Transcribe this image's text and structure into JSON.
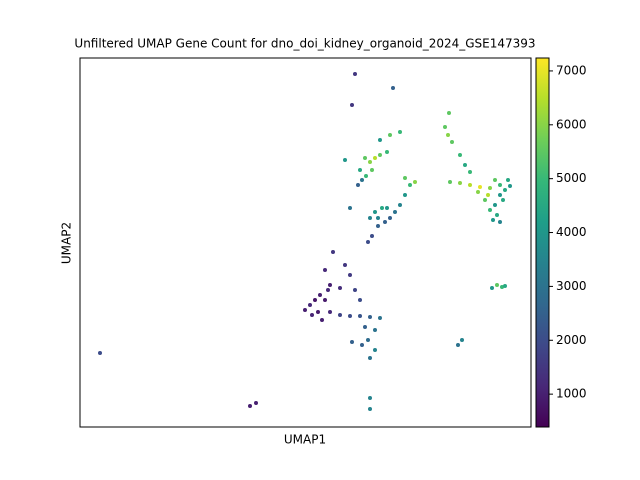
{
  "chart_data": {
    "type": "scatter",
    "title": "Unfiltered UMAP Gene Count for dno_doi_kidney_organoid_2024_GSE147393",
    "x_label": "UMAP1",
    "y_label": "UMAP2",
    "xlim": [
      0,
      45.1
    ],
    "ylim": [
      0,
      36.9
    ],
    "colormap": "viridis",
    "clim": [
      390,
      7240
    ],
    "cticks": [
      1000,
      2000,
      3000,
      4000,
      5000,
      6000,
      7000
    ],
    "x": [
      27.5,
      27.2,
      31.3,
      2.0,
      17.0,
      17.6,
      29.0,
      29.0,
      37.8,
      38.2,
      37.0,
      38.0,
      39.0,
      40.0,
      41.0,
      42.0,
      42.5,
      43.0,
      42.8,
      42.0,
      41.5,
      41.7,
      41.3,
      42.0,
      40.8,
      39.8,
      40.5,
      41.0,
      41.5,
      42.3,
      36.5,
      36.8,
      37.2,
      38.0,
      38.5,
      39.0,
      36.9,
      41.2,
      41.7,
      42.2,
      42.5,
      28.5,
      29.0,
      29.5,
      30.0,
      30.7,
      28.0,
      28.2,
      27.8,
      28.6,
      29.2,
      30.0,
      31.0,
      32.0,
      26.5,
      33.0,
      32.5,
      32.0,
      31.5,
      31.0,
      30.5,
      29.8,
      29.2,
      28.8,
      33.5,
      32.5,
      29.5,
      30.2,
      30.7,
      29.8,
      29.0,
      27.0,
      22.5,
      23.0,
      23.5,
      24.0,
      24.5,
      24.8,
      23.8,
      25.0,
      26.0,
      27.0,
      28.0,
      29.0,
      30.0,
      24.2,
      23.2,
      25.3,
      26.5,
      27.0,
      24.5,
      25.0,
      26.0,
      27.5,
      28.0,
      28.5,
      29.5,
      27.2,
      28.2,
      29.0,
      29.5,
      28.8
    ],
    "y": [
      35.3,
      32.2,
      33.9,
      7.4,
      2.1,
      2.4,
      2.9,
      1.8,
      8.2,
      8.7,
      24.5,
      24.4,
      24.2,
      24.0,
      23.9,
      24.2,
      23.7,
      24.1,
      24.7,
      23.2,
      22.2,
      21.2,
      20.7,
      20.5,
      23.2,
      23.5,
      22.7,
      21.7,
      24.7,
      22.7,
      30.0,
      29.2,
      28.5,
      27.2,
      26.2,
      25.5,
      31.4,
      13.9,
      14.2,
      14.0,
      14.1,
      26.9,
      26.5,
      26.9,
      27.2,
      27.5,
      25.7,
      24.7,
      24.2,
      25.1,
      25.7,
      28.7,
      29.2,
      29.5,
      26.7,
      24.2,
      23.2,
      22.2,
      21.5,
      20.9,
      20.5,
      20.1,
      19.1,
      18.5,
      24.5,
      24.9,
      21.5,
      21.9,
      21.9,
      20.9,
      20.9,
      21.9,
      11.7,
      12.2,
      12.7,
      13.2,
      12.7,
      13.7,
      11.5,
      11.5,
      11.2,
      11.1,
      11.1,
      11.0,
      10.9,
      10.7,
      11.2,
      17.5,
      16.2,
      15.2,
      15.7,
      14.2,
      13.9,
      13.7,
      12.7,
      10.0,
      9.7,
      8.5,
      8.2,
      6.9,
      7.7,
      8.7
    ],
    "values": [
      1500,
      1500,
      2500,
      2000,
      1000,
      1000,
      3500,
      3500,
      3000,
      3500,
      5500,
      6000,
      6500,
      7000,
      6000,
      5000,
      4500,
      4000,
      4500,
      4000,
      4000,
      4500,
      4000,
      3500,
      6500,
      6000,
      5500,
      5000,
      5500,
      4500,
      5500,
      6000,
      5500,
      5000,
      4500,
      5000,
      5500,
      4000,
      5500,
      5000,
      4500,
      5500,
      6000,
      6500,
      5500,
      5000,
      4500,
      3000,
      2500,
      5000,
      5500,
      4000,
      5500,
      5000,
      4000,
      5000,
      4000,
      3500,
      3000,
      2500,
      2500,
      2500,
      2000,
      2000,
      6000,
      5500,
      4000,
      4500,
      4000,
      3500,
      3500,
      3000,
      1000,
      1200,
      800,
      1000,
      900,
      1200,
      900,
      1200,
      1800,
      2000,
      2200,
      2500,
      3000,
      1000,
      1100,
      1500,
      1500,
      1600,
      1200,
      1000,
      1300,
      1800,
      2000,
      2500,
      3000,
      2500,
      2500,
      3000,
      3500,
      2800
    ]
  }
}
